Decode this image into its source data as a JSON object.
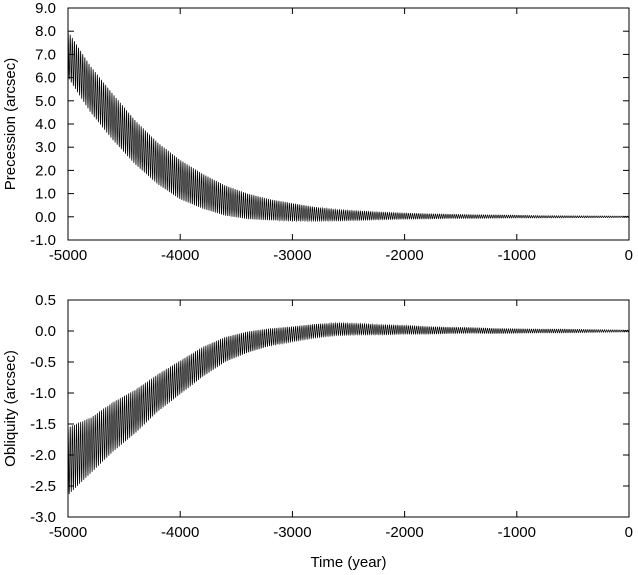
{
  "chart_data": [
    {
      "type": "line",
      "ylabel": "Precession  (arcsec)",
      "xlabel": "",
      "xlim": [
        -5000,
        0
      ],
      "ylim": [
        -1.0,
        9.0
      ],
      "xticks": [
        -5000,
        -4000,
        -3000,
        -2000,
        -1000,
        0
      ],
      "xtick_labels": [
        "-5000",
        "-4000",
        "-3000",
        "-2000",
        "-1000",
        "0"
      ],
      "yticks": [
        -1.0,
        0.0,
        1.0,
        2.0,
        3.0,
        4.0,
        5.0,
        6.0,
        7.0,
        8.0,
        9.0
      ],
      "ytick_labels": [
        "-1.0",
        "0.0",
        "1.0",
        "2.0",
        "3.0",
        "4.0",
        "5.0",
        "6.0",
        "7.0",
        "8.0",
        "9.0"
      ],
      "grid": false,
      "series": [
        {
          "color": "#000000",
          "envelope_time": [
            -5000,
            -4800,
            -4600,
            -4400,
            -4200,
            -4000,
            -3800,
            -3600,
            -3400,
            -3200,
            -3000,
            -2800,
            -2600,
            -2400,
            -2200,
            -2000,
            -1800,
            -1600,
            -1400,
            -1200,
            -1000,
            -800,
            -600,
            -400,
            -200,
            0
          ],
          "envelope_center": [
            7.0,
            5.5,
            4.3,
            3.2,
            2.3,
            1.6,
            1.1,
            0.7,
            0.45,
            0.3,
            0.2,
            0.12,
            0.07,
            0.05,
            0.04,
            0.03,
            0.02,
            0.02,
            0.01,
            0.01,
            0.01,
            0.0,
            0.0,
            0.0,
            0.0,
            0.0
          ],
          "envelope_halfwidth": [
            1.0,
            1.0,
            1.0,
            0.95,
            0.9,
            0.85,
            0.75,
            0.65,
            0.55,
            0.45,
            0.38,
            0.3,
            0.24,
            0.2,
            0.16,
            0.13,
            0.11,
            0.09,
            0.08,
            0.07,
            0.06,
            0.05,
            0.045,
            0.04,
            0.035,
            0.03
          ],
          "oscillation_period": 18.6
        }
      ]
    },
    {
      "type": "line",
      "ylabel": "Obliquity  (arcsec)",
      "xlabel": "Time  (year)",
      "xlim": [
        -5000,
        0
      ],
      "ylim": [
        -3.0,
        0.5
      ],
      "xticks": [
        -5000,
        -4000,
        -3000,
        -2000,
        -1000,
        0
      ],
      "xtick_labels": [
        "-5000",
        "-4000",
        "-3000",
        "-2000",
        "-1000",
        "0"
      ],
      "yticks": [
        -3.0,
        -2.5,
        -2.0,
        -1.5,
        -1.0,
        -0.5,
        0.0,
        0.5
      ],
      "ytick_labels": [
        "-3.0",
        "-2.5",
        "-2.0",
        "-1.5",
        "-1.0",
        "-0.5",
        "0.0",
        "0.5"
      ],
      "grid": false,
      "series": [
        {
          "color": "#000000",
          "envelope_time": [
            -5000,
            -4800,
            -4600,
            -4400,
            -4200,
            -4000,
            -3800,
            -3600,
            -3400,
            -3200,
            -3000,
            -2800,
            -2600,
            -2400,
            -2200,
            -2000,
            -1800,
            -1600,
            -1400,
            -1200,
            -1000,
            -800,
            -600,
            -400,
            -200,
            0
          ],
          "envelope_center": [
            -2.1,
            -1.85,
            -1.55,
            -1.3,
            -1.0,
            -0.75,
            -0.5,
            -0.3,
            -0.18,
            -0.1,
            -0.05,
            0.0,
            0.03,
            0.03,
            0.02,
            0.02,
            0.01,
            0.01,
            0.01,
            0.0,
            0.0,
            0.0,
            0.0,
            0.0,
            0.0,
            0.0
          ],
          "envelope_halfwidth": [
            0.55,
            0.45,
            0.4,
            0.35,
            0.3,
            0.27,
            0.24,
            0.2,
            0.17,
            0.14,
            0.12,
            0.11,
            0.1,
            0.09,
            0.08,
            0.07,
            0.06,
            0.05,
            0.045,
            0.04,
            0.035,
            0.03,
            0.03,
            0.025,
            0.02,
            0.015
          ],
          "oscillation_period": 18.6
        }
      ]
    }
  ]
}
